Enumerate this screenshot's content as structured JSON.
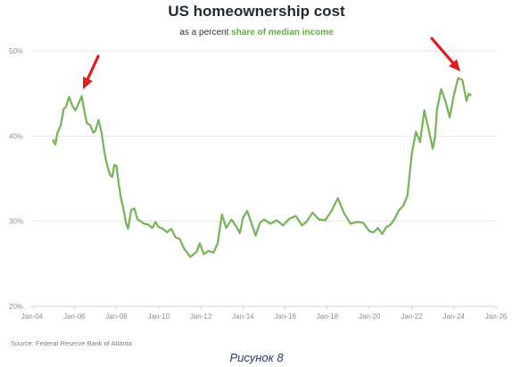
{
  "title": "US homeownership cost",
  "subtitle_prefix": "as a percent",
  "subtitle_highlight": "share of median income",
  "source": "Source: Federal Reserve Bank of Atlanta",
  "caption": "Рисунок 8",
  "colors": {
    "line": "#7ab55c",
    "arrow": "#e01e1e",
    "highlight": "#6aa84f",
    "grid": "#e6e6e6"
  },
  "chart_data": {
    "type": "line",
    "title": "US homeownership cost",
    "ylabel": "",
    "xlabel": "",
    "y_ticks": [
      "50%",
      "40%",
      "30%",
      "20%"
    ],
    "y_tick_values": [
      50,
      40,
      30,
      20
    ],
    "ylim": [
      20,
      50
    ],
    "x_ticks": [
      "Jan-04",
      "Jan-06",
      "Jan-08",
      "Jan-10",
      "Jan-12",
      "Jan-14",
      "Jan-16",
      "Jan-18",
      "Jan-20",
      "Jan-22",
      "Jan-24",
      "Jan-26"
    ],
    "x_tick_values": [
      2004,
      2006,
      2008,
      2010,
      2012,
      2014,
      2016,
      2018,
      2020,
      2022,
      2024,
      2026
    ],
    "xlim": [
      2004,
      2026
    ],
    "grid": "horizontal",
    "annotations": [
      "red arrow pointing to 2006 peak",
      "red arrow pointing to 2024 peak"
    ],
    "series": [
      {
        "x": [
          2005.0,
          2005.1,
          2005.2,
          2005.35,
          2005.5,
          2005.6,
          2005.75,
          2005.9,
          2006.05,
          2006.2,
          2006.35,
          2006.5,
          2006.6,
          2006.75,
          2006.9,
          2007.0,
          2007.15,
          2007.3,
          2007.4,
          2007.5,
          2007.6,
          2007.7,
          2007.8,
          2007.9,
          2008.0,
          2008.1,
          2008.2,
          2008.35,
          2008.45,
          2008.55,
          2008.7,
          2008.85,
          2009.0,
          2009.15,
          2009.3,
          2009.5,
          2009.7,
          2009.85,
          2010.0,
          2010.2,
          2010.4,
          2010.6,
          2010.8,
          2011.0,
          2011.2,
          2011.5,
          2011.8,
          2011.95,
          2012.15,
          2012.35,
          2012.6,
          2012.8,
          2013.0,
          2013.2,
          2013.45,
          2013.65,
          2013.85,
          2014.0,
          2014.2,
          2014.4,
          2014.6,
          2014.8,
          2015.0,
          2015.3,
          2015.6,
          2015.9,
          2016.2,
          2016.5,
          2016.8,
          2017.0,
          2017.3,
          2017.6,
          2017.9,
          2018.2,
          2018.5,
          2018.8,
          2019.1,
          2019.4,
          2019.7,
          2020.0,
          2020.2,
          2020.4,
          2020.6,
          2020.8,
          2021.0,
          2021.2,
          2021.4,
          2021.6,
          2021.8,
          2022.0,
          2022.2,
          2022.4,
          2022.6,
          2022.8,
          2023.0,
          2023.1,
          2023.2,
          2023.4,
          2023.6,
          2023.8,
          2024.0,
          2024.2,
          2024.4,
          2024.6,
          2024.7,
          2024.8
        ],
        "values": [
          39.5,
          39.0,
          40.4,
          41.2,
          43.2,
          43.4,
          44.6,
          43.6,
          43.0,
          43.8,
          44.7,
          42.6,
          41.5,
          41.3,
          40.4,
          40.6,
          41.9,
          40.3,
          38.5,
          37.2,
          36.2,
          35.4,
          35.2,
          36.6,
          36.5,
          34.5,
          32.9,
          31.2,
          29.8,
          29.1,
          31.3,
          31.5,
          30.2,
          30.0,
          29.7,
          29.6,
          29.2,
          29.9,
          29.3,
          29.1,
          28.7,
          29.1,
          28.1,
          27.9,
          26.8,
          25.8,
          26.4,
          27.4,
          26.1,
          26.5,
          26.3,
          27.4,
          30.8,
          29.2,
          30.2,
          29.5,
          28.6,
          30.4,
          31.2,
          29.8,
          28.3,
          29.8,
          30.2,
          29.7,
          30.1,
          29.5,
          30.3,
          30.6,
          29.5,
          29.9,
          31.0,
          30.2,
          30.1,
          31.2,
          32.7,
          30.9,
          29.7,
          29.9,
          29.8,
          28.8,
          28.7,
          29.2,
          28.5,
          29.3,
          29.6,
          30.3,
          31.3,
          31.8,
          33.0,
          37.9,
          40.5,
          39.3,
          43.0,
          40.8,
          38.5,
          39.8,
          43.1,
          45.5,
          44.1,
          42.2,
          44.8,
          46.8,
          46.6,
          44.1,
          45.0,
          44.8
        ]
      }
    ]
  }
}
